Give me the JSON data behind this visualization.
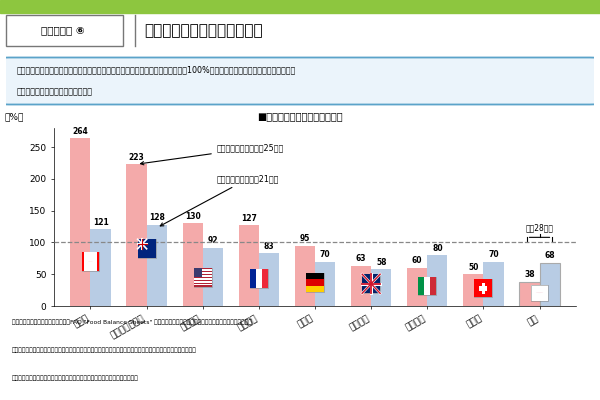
{
  "title_box_label": "食料自給率 ⑥",
  "title_main": "我が国と諸外国の食料自給率",
  "subtitle_line1": "カナダ、オーストラリア、アメリカ、フランス等の輸出が多い国の食料自給率は100%を超えている中にあって、我が国の食料",
  "subtitle_line2": "自給率は、先進国中最低水準です。",
  "chart_title": "■我が国と諸外国の食料自給率",
  "legend_calorie": "カロリーベース（平成25年）",
  "legend_production": "生産額ベース（平成21年）",
  "annotation_2016": "平成28年度",
  "countries": [
    "カナダ",
    "オーストラリア",
    "アメリカ",
    "フランス",
    "ドイツ",
    "イギリス",
    "イタリア",
    "スイス",
    "日本"
  ],
  "calorie_values": [
    264,
    223,
    130,
    127,
    95,
    63,
    60,
    50,
    38
  ],
  "production_values": [
    121,
    128,
    92,
    83,
    70,
    58,
    80,
    70,
    68
  ],
  "bar_color_calorie": "#F4AAAA",
  "bar_color_production": "#B8CCE4",
  "line100_color": "#666666",
  "ylabel": "（%）",
  "ylim": [
    0,
    280
  ],
  "yticks": [
    0,
    50,
    100,
    150,
    200,
    250
  ],
  "footer_line1": "資料：農林水産省「食料需給表」、FAO \"Food Balance Sheets\" 等を基に農林水産省で試算。（アルコール類等は含まない）",
  "footer_line2": "注１：数値は暦年（日本のみ年度）。スイス及びイギリス（生産額ベース）については、各政府の公表値を掲載。",
  "footer_line3": "注２：畜産物及び加工品については、輸入飼料及び輸入原料を考慮して計算。",
  "top_bar_color": "#8DC63F",
  "infobox_border": "#5BA3C9",
  "infobox_bg": "#EBF4FB"
}
